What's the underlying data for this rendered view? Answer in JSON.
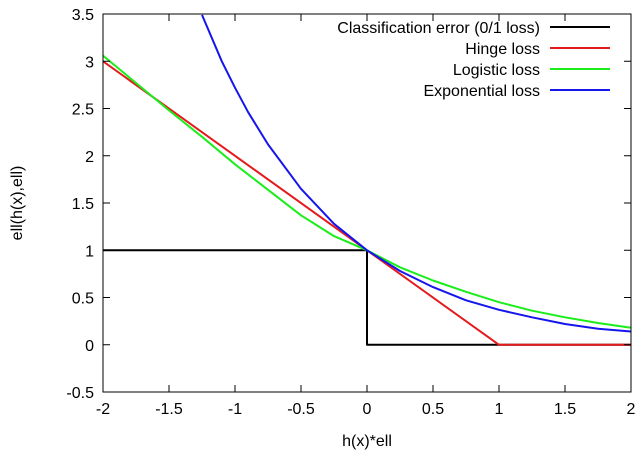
{
  "chart_data": {
    "type": "line",
    "xlabel": "h(x)*ell",
    "ylabel": "ell(h(x),ell)",
    "xlim": [
      -2,
      2
    ],
    "ylim": [
      -0.5,
      3.5
    ],
    "xticks": [
      "-2",
      "-1.5",
      "-1",
      "-0.5",
      "0",
      "0.5",
      "1",
      "1.5",
      "2"
    ],
    "yticks": [
      "-0.5",
      "0",
      "0.5",
      "1",
      "1.5",
      "2",
      "2.5",
      "3",
      "3.5"
    ],
    "grid": false,
    "legend_position": "top-right",
    "series": [
      {
        "name": "Classification error (0/1 loss)",
        "color": "#000000",
        "x": [
          -2,
          0,
          0,
          2
        ],
        "y": [
          1,
          1,
          0,
          0
        ]
      },
      {
        "name": "Hinge loss",
        "color": "#e41a1c",
        "x": [
          -2,
          1,
          2
        ],
        "y": [
          3,
          0,
          0
        ]
      },
      {
        "name": "Logistic loss",
        "color": "#1aee1a",
        "x": [
          -2,
          -1.75,
          -1.5,
          -1.25,
          -1,
          -0.75,
          -0.5,
          -0.25,
          0,
          0.25,
          0.5,
          0.75,
          1,
          1.25,
          1.5,
          1.75,
          2
        ],
        "y": [
          3.06,
          2.77,
          2.48,
          2.2,
          1.91,
          1.64,
          1.37,
          1.15,
          1,
          0.82,
          0.68,
          0.56,
          0.45,
          0.36,
          0.29,
          0.23,
          0.18
        ]
      },
      {
        "name": "Exponential loss",
        "color": "#1515ee",
        "x": [
          -1.25,
          -1.1,
          -1,
          -0.9,
          -0.75,
          -0.5,
          -0.25,
          0,
          0.25,
          0.5,
          0.75,
          1,
          1.25,
          1.5,
          1.75,
          2
        ],
        "y": [
          3.49,
          3.0,
          2.72,
          2.46,
          2.12,
          1.65,
          1.28,
          1,
          0.78,
          0.61,
          0.47,
          0.37,
          0.29,
          0.22,
          0.17,
          0.14
        ]
      }
    ]
  }
}
